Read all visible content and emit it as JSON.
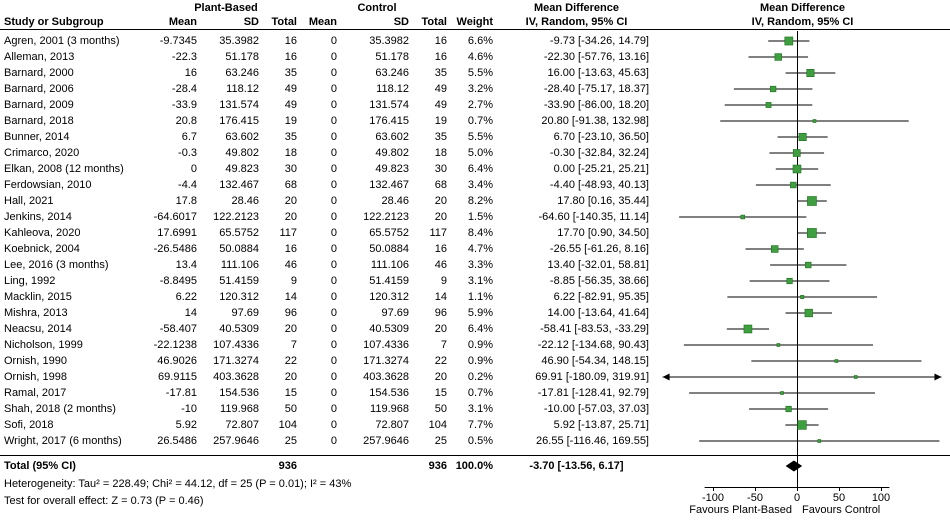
{
  "header": {
    "study_col": "Study or Subgroup",
    "group_plant": "Plant-Based",
    "group_control": "Control",
    "mean": "Mean",
    "sd": "SD",
    "total": "Total",
    "weight": "Weight",
    "mean_difference": "Mean Difference",
    "method": "IV, Random, 95% CI"
  },
  "totals": {
    "label": "Total (95% CI)",
    "plant_total": "936",
    "control_total": "936",
    "weight": "100.0%",
    "ci_label": "-3.70 [-13.56, 6.17]"
  },
  "footer": {
    "heterogeneity": "Heterogeneity: Tau² = 228.49; Chi² = 44.12, df = 25 (P = 0.01); I² = 43%",
    "overall_effect": "Test for overall effect: Z = 0.73 (P = 0.46)"
  },
  "colors": {
    "marker": "#3f9e3f",
    "marker_border": "#1e6f1e",
    "line": "#000000",
    "diamond": "#000000",
    "background": "#ffffff",
    "text": "#000000"
  },
  "chart_data": {
    "type": "scatter",
    "subtype": "forest-plot",
    "title": "Mean Difference, IV, Random, 95% CI",
    "x_ticks": [
      -100,
      -50,
      0,
      50,
      100
    ],
    "x_clamp": [
      -160,
      172
    ],
    "favours_left": "Favours Plant-Based",
    "favours_right": "Favours Control",
    "studies": [
      {
        "name": "Agren, 2001 (3 months)",
        "pb_mean": "-9.7345",
        "pb_sd": "35.3982",
        "pb_total": "16",
        "ctrl_mean": "0",
        "ctrl_sd": "35.3982",
        "ctrl_total": "16",
        "weight": "6.6%",
        "ci_label": "-9.73 [-34.26, 14.79]",
        "md": -9.73,
        "ci_low": -34.26,
        "ci_high": 14.79,
        "weight_pct": 6.6
      },
      {
        "name": "Alleman, 2013",
        "pb_mean": "-22.3",
        "pb_sd": "51.178",
        "pb_total": "16",
        "ctrl_mean": "0",
        "ctrl_sd": "51.178",
        "ctrl_total": "16",
        "weight": "4.6%",
        "ci_label": "-22.30 [-57.76, 13.16]",
        "md": -22.3,
        "ci_low": -57.76,
        "ci_high": 13.16,
        "weight_pct": 4.6
      },
      {
        "name": "Barnard, 2000",
        "pb_mean": "16",
        "pb_sd": "63.246",
        "pb_total": "35",
        "ctrl_mean": "0",
        "ctrl_sd": "63.246",
        "ctrl_total": "35",
        "weight": "5.5%",
        "ci_label": "16.00 [-13.63, 45.63]",
        "md": 16.0,
        "ci_low": -13.63,
        "ci_high": 45.63,
        "weight_pct": 5.5
      },
      {
        "name": "Barnard, 2006",
        "pb_mean": "-28.4",
        "pb_sd": "118.12",
        "pb_total": "49",
        "ctrl_mean": "0",
        "ctrl_sd": "118.12",
        "ctrl_total": "49",
        "weight": "3.2%",
        "ci_label": "-28.40 [-75.17, 18.37]",
        "md": -28.4,
        "ci_low": -75.17,
        "ci_high": 18.37,
        "weight_pct": 3.2
      },
      {
        "name": "Barnard, 2009",
        "pb_mean": "-33.9",
        "pb_sd": "131.574",
        "pb_total": "49",
        "ctrl_mean": "0",
        "ctrl_sd": "131.574",
        "ctrl_total": "49",
        "weight": "2.7%",
        "ci_label": "-33.90 [-86.00, 18.20]",
        "md": -33.9,
        "ci_low": -86.0,
        "ci_high": 18.2,
        "weight_pct": 2.7
      },
      {
        "name": "Barnard, 2018",
        "pb_mean": "20.8",
        "pb_sd": "176.415",
        "pb_total": "19",
        "ctrl_mean": "0",
        "ctrl_sd": "176.415",
        "ctrl_total": "19",
        "weight": "0.7%",
        "ci_label": "20.80 [-91.38, 132.98]",
        "md": 20.8,
        "ci_low": -91.38,
        "ci_high": 132.98,
        "weight_pct": 0.7
      },
      {
        "name": "Bunner, 2014",
        "pb_mean": "6.7",
        "pb_sd": "63.602",
        "pb_total": "35",
        "ctrl_mean": "0",
        "ctrl_sd": "63.602",
        "ctrl_total": "35",
        "weight": "5.5%",
        "ci_label": "6.70 [-23.10, 36.50]",
        "md": 6.7,
        "ci_low": -23.1,
        "ci_high": 36.5,
        "weight_pct": 5.5
      },
      {
        "name": "Crimarco, 2020",
        "pb_mean": "-0.3",
        "pb_sd": "49.802",
        "pb_total": "18",
        "ctrl_mean": "0",
        "ctrl_sd": "49.802",
        "ctrl_total": "18",
        "weight": "5.0%",
        "ci_label": "-0.30 [-32.84, 32.24]",
        "md": -0.3,
        "ci_low": -32.84,
        "ci_high": 32.24,
        "weight_pct": 5.0
      },
      {
        "name": "Elkan, 2008 (12 months)",
        "pb_mean": "0",
        "pb_sd": "49.823",
        "pb_total": "30",
        "ctrl_mean": "0",
        "ctrl_sd": "49.823",
        "ctrl_total": "30",
        "weight": "6.4%",
        "ci_label": "0.00 [-25.21, 25.21]",
        "md": 0.0,
        "ci_low": -25.21,
        "ci_high": 25.21,
        "weight_pct": 6.4
      },
      {
        "name": "Ferdowsian, 2010",
        "pb_mean": "-4.4",
        "pb_sd": "132.467",
        "pb_total": "68",
        "ctrl_mean": "0",
        "ctrl_sd": "132.467",
        "ctrl_total": "68",
        "weight": "3.4%",
        "ci_label": "-4.40 [-48.93, 40.13]",
        "md": -4.4,
        "ci_low": -48.93,
        "ci_high": 40.13,
        "weight_pct": 3.4
      },
      {
        "name": "Hall, 2021",
        "pb_mean": "17.8",
        "pb_sd": "28.46",
        "pb_total": "20",
        "ctrl_mean": "0",
        "ctrl_sd": "28.46",
        "ctrl_total": "20",
        "weight": "8.2%",
        "ci_label": "17.80 [0.16, 35.44]",
        "md": 17.8,
        "ci_low": 0.16,
        "ci_high": 35.44,
        "weight_pct": 8.2
      },
      {
        "name": "Jenkins, 2014",
        "pb_mean": "-64.6017",
        "pb_sd": "122.2123",
        "pb_total": "20",
        "ctrl_mean": "0",
        "ctrl_sd": "122.2123",
        "ctrl_total": "20",
        "weight": "1.5%",
        "ci_label": "-64.60 [-140.35, 11.14]",
        "md": -64.6,
        "ci_low": -140.35,
        "ci_high": 11.14,
        "weight_pct": 1.5
      },
      {
        "name": "Kahleova, 2020",
        "pb_mean": "17.6991",
        "pb_sd": "65.5752",
        "pb_total": "117",
        "ctrl_mean": "0",
        "ctrl_sd": "65.5752",
        "ctrl_total": "117",
        "weight": "8.4%",
        "ci_label": "17.70 [0.90, 34.50]",
        "md": 17.7,
        "ci_low": 0.9,
        "ci_high": 34.5,
        "weight_pct": 8.4
      },
      {
        "name": "Koebnick, 2004",
        "pb_mean": "-26.5486",
        "pb_sd": "50.0884",
        "pb_total": "16",
        "ctrl_mean": "0",
        "ctrl_sd": "50.0884",
        "ctrl_total": "16",
        "weight": "4.7%",
        "ci_label": "-26.55 [-61.26, 8.16]",
        "md": -26.55,
        "ci_low": -61.26,
        "ci_high": 8.16,
        "weight_pct": 4.7
      },
      {
        "name": "Lee, 2016 (3 months)",
        "pb_mean": "13.4",
        "pb_sd": "111.106",
        "pb_total": "46",
        "ctrl_mean": "0",
        "ctrl_sd": "111.106",
        "ctrl_total": "46",
        "weight": "3.3%",
        "ci_label": "13.40 [-32.01, 58.81]",
        "md": 13.4,
        "ci_low": -32.01,
        "ci_high": 58.81,
        "weight_pct": 3.3
      },
      {
        "name": "Ling, 1992",
        "pb_mean": "-8.8495",
        "pb_sd": "51.4159",
        "pb_total": "9",
        "ctrl_mean": "0",
        "ctrl_sd": "51.4159",
        "ctrl_total": "9",
        "weight": "3.1%",
        "ci_label": "-8.85 [-56.35, 38.66]",
        "md": -8.85,
        "ci_low": -56.35,
        "ci_high": 38.66,
        "weight_pct": 3.1
      },
      {
        "name": "Macklin, 2015",
        "pb_mean": "6.22",
        "pb_sd": "120.312",
        "pb_total": "14",
        "ctrl_mean": "0",
        "ctrl_sd": "120.312",
        "ctrl_total": "14",
        "weight": "1.1%",
        "ci_label": "6.22 [-82.91, 95.35]",
        "md": 6.22,
        "ci_low": -82.91,
        "ci_high": 95.35,
        "weight_pct": 1.1
      },
      {
        "name": "Mishra, 2013",
        "pb_mean": "14",
        "pb_sd": "97.69",
        "pb_total": "96",
        "ctrl_mean": "0",
        "ctrl_sd": "97.69",
        "ctrl_total": "96",
        "weight": "5.9%",
        "ci_label": "14.00 [-13.64, 41.64]",
        "md": 14.0,
        "ci_low": -13.64,
        "ci_high": 41.64,
        "weight_pct": 5.9
      },
      {
        "name": "Neacsu, 2014",
        "pb_mean": "-58.407",
        "pb_sd": "40.5309",
        "pb_total": "20",
        "ctrl_mean": "0",
        "ctrl_sd": "40.5309",
        "ctrl_total": "20",
        "weight": "6.4%",
        "ci_label": "-58.41 [-83.53, -33.29]",
        "md": -58.41,
        "ci_low": -83.53,
        "ci_high": -33.29,
        "weight_pct": 6.4
      },
      {
        "name": "Nicholson, 1999",
        "pb_mean": "-22.1238",
        "pb_sd": "107.4336",
        "pb_total": "7",
        "ctrl_mean": "0",
        "ctrl_sd": "107.4336",
        "ctrl_total": "7",
        "weight": "0.9%",
        "ci_label": "-22.12 [-134.68, 90.43]",
        "md": -22.12,
        "ci_low": -134.68,
        "ci_high": 90.43,
        "weight_pct": 0.9
      },
      {
        "name": "Ornish, 1990",
        "pb_mean": "46.9026",
        "pb_sd": "171.3274",
        "pb_total": "22",
        "ctrl_mean": "0",
        "ctrl_sd": "171.3274",
        "ctrl_total": "22",
        "weight": "0.9%",
        "ci_label": "46.90 [-54.34, 148.15]",
        "md": 46.9,
        "ci_low": -54.34,
        "ci_high": 148.15,
        "weight_pct": 0.9
      },
      {
        "name": "Ornish, 1998",
        "pb_mean": "69.9115",
        "pb_sd": "403.3628",
        "pb_total": "20",
        "ctrl_mean": "0",
        "ctrl_sd": "403.3628",
        "ctrl_total": "20",
        "weight": "0.2%",
        "ci_label": "69.91 [-180.09, 319.91]",
        "md": 69.91,
        "ci_low": -180.09,
        "ci_high": 319.91,
        "weight_pct": 0.2
      },
      {
        "name": "Ramal, 2017",
        "pb_mean": "-17.81",
        "pb_sd": "154.536",
        "pb_total": "15",
        "ctrl_mean": "0",
        "ctrl_sd": "154.536",
        "ctrl_total": "15",
        "weight": "0.7%",
        "ci_label": "-17.81 [-128.41, 92.79]",
        "md": -17.81,
        "ci_low": -128.41,
        "ci_high": 92.79,
        "weight_pct": 0.7
      },
      {
        "name": "Shah, 2018 (2 months)",
        "pb_mean": "-10",
        "pb_sd": "119.968",
        "pb_total": "50",
        "ctrl_mean": "0",
        "ctrl_sd": "119.968",
        "ctrl_total": "50",
        "weight": "3.1%",
        "ci_label": "-10.00 [-57.03, 37.03]",
        "md": -10.0,
        "ci_low": -57.03,
        "ci_high": 37.03,
        "weight_pct": 3.1
      },
      {
        "name": "Sofi, 2018",
        "pb_mean": "5.92",
        "pb_sd": "72.807",
        "pb_total": "104",
        "ctrl_mean": "0",
        "ctrl_sd": "72.807",
        "ctrl_total": "104",
        "weight": "7.7%",
        "ci_label": "5.92 [-13.87, 25.71]",
        "md": 5.92,
        "ci_low": -13.87,
        "ci_high": 25.71,
        "weight_pct": 7.7
      },
      {
        "name": "Wright, 2017 (6 months)",
        "pb_mean": "26.5486",
        "pb_sd": "257.9646",
        "pb_total": "25",
        "ctrl_mean": "0",
        "ctrl_sd": "257.9646",
        "ctrl_total": "25",
        "weight": "0.5%",
        "ci_label": "26.55 [-116.46, 169.55]",
        "md": 26.55,
        "ci_low": -116.46,
        "ci_high": 169.55,
        "weight_pct": 0.5
      }
    ],
    "total": {
      "md": -3.7,
      "ci_low": -13.56,
      "ci_high": 6.17
    }
  }
}
